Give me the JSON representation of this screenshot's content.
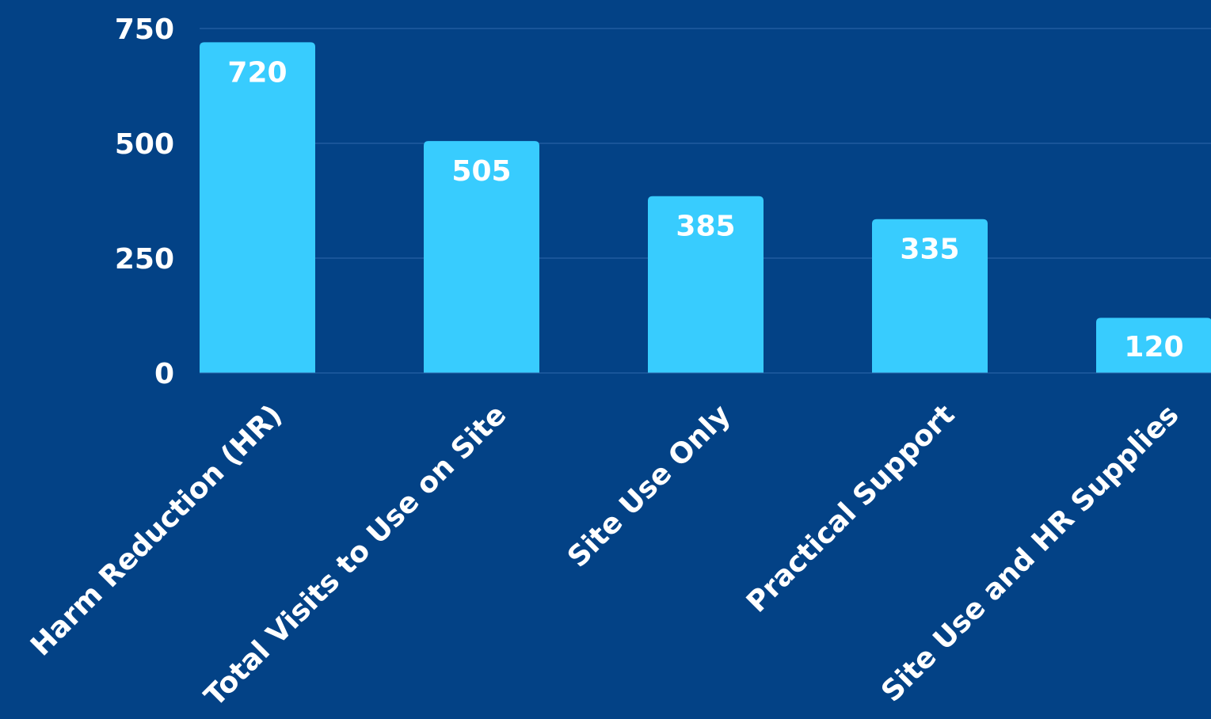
{
  "chart_data": {
    "type": "bar",
    "title": "",
    "xlabel": "",
    "ylabel": "",
    "categories": [
      "Harm Reduction (HR)",
      "Total Visits to Use on Site",
      "Site Use Only",
      "Practical Support",
      "Site Use and HR Supplies"
    ],
    "values": [
      720,
      505,
      385,
      335,
      120
    ],
    "ylim": [
      0,
      750
    ],
    "yticks": [
      0,
      250,
      500,
      750
    ],
    "grid": true,
    "colors": {
      "background": "#034286",
      "bar": "#38CCFE",
      "text": "#FFFFFF",
      "gridline": "#2F68AC"
    }
  }
}
